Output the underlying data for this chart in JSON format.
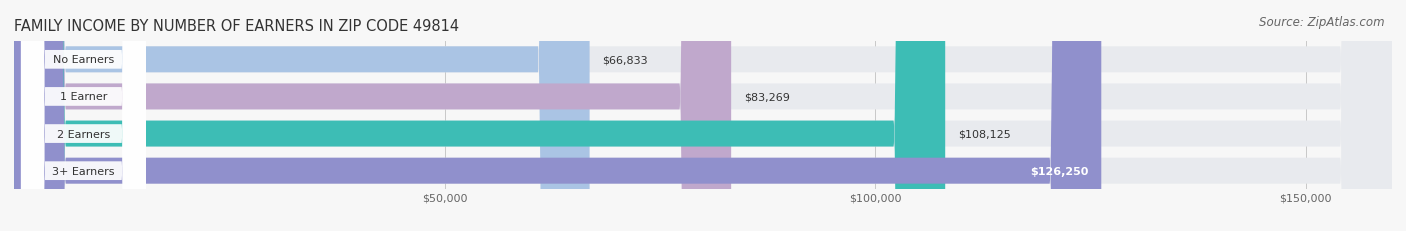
{
  "title": "FAMILY INCOME BY NUMBER OF EARNERS IN ZIP CODE 49814",
  "source": "Source: ZipAtlas.com",
  "categories": [
    "No Earners",
    "1 Earner",
    "2 Earners",
    "3+ Earners"
  ],
  "values": [
    66833,
    83269,
    108125,
    126250
  ],
  "bar_colors": [
    "#aac4e4",
    "#c0a8cc",
    "#3dbdb5",
    "#9090cc"
  ],
  "value_labels": [
    "$66,833",
    "$83,269",
    "$108,125",
    "$126,250"
  ],
  "label_inside": [
    false,
    false,
    false,
    true
  ],
  "xlim": [
    0,
    160000
  ],
  "xticks": [
    50000,
    100000,
    150000
  ],
  "xticklabels": [
    "$50,000",
    "$100,000",
    "$150,000"
  ],
  "background_color": "#f7f7f7",
  "row_bg_color": "#e8eaee",
  "title_fontsize": 10.5,
  "source_fontsize": 8.5,
  "bar_fontsize": 8,
  "label_fontsize": 8
}
